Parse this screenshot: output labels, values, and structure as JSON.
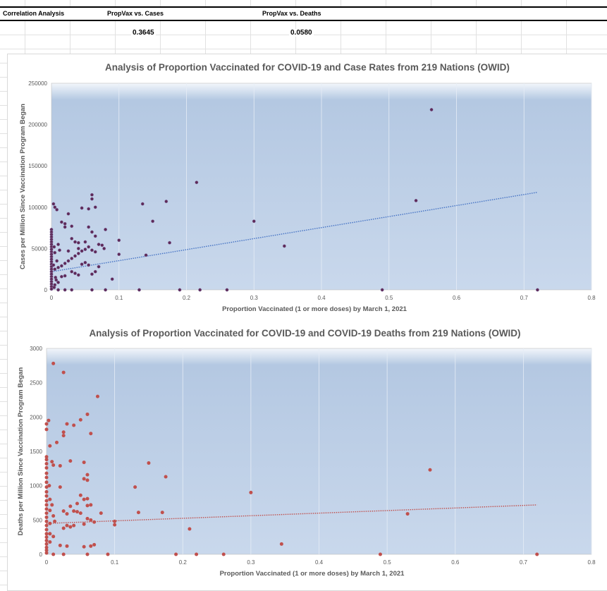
{
  "sheet": {
    "headers": [
      "Correlation Analysis",
      "PropVax vs. Cases",
      "PropVax vs. Deaths"
    ],
    "values": [
      "0.3645",
      "0.0580"
    ]
  },
  "colors": {
    "plot_top": "#dce6f2",
    "plot_bottom": "#c6d6ea",
    "cases_point": "#5e2a57",
    "cases_trend": "#4472c4",
    "deaths_point": "#c0504d",
    "deaths_trend": "#c0504d"
  },
  "chart_data": [
    {
      "type": "scatter",
      "title": "Analysis of Proportion Vaccinated for COVID-19 and Case Rates from 219 Nations (OWID)",
      "xlabel": "Proportion Vaccinated (1 or more doses) by March 1, 2021",
      "ylabel": "Cases per Million Since Vaccination Program Began",
      "xlim": [
        0,
        0.8
      ],
      "ylim": [
        0,
        250000
      ],
      "xticks": [
        "0",
        "0.1",
        "0.2",
        "0.3",
        "0.4",
        "0.5",
        "0.6",
        "0.7",
        "0.8"
      ],
      "yticks": [
        "0",
        "50000",
        "100000",
        "150000",
        "200000",
        "250000"
      ],
      "trendline": {
        "x": [
          0,
          0.72
        ],
        "y": [
          22000,
          118000
        ]
      },
      "points": [
        [
          0.563,
          218000
        ],
        [
          0.215,
          130000
        ],
        [
          0.54,
          108000
        ],
        [
          0.3,
          83000
        ],
        [
          0.345,
          53000
        ],
        [
          0.49,
          0
        ],
        [
          0.72,
          0
        ],
        [
          0.22,
          0
        ],
        [
          0.26,
          0
        ],
        [
          0.19,
          0
        ],
        [
          0.13,
          0
        ],
        [
          0.08,
          0
        ],
        [
          0.135,
          104000
        ],
        [
          0.17,
          107000
        ],
        [
          0.15,
          83000
        ],
        [
          0.175,
          57000
        ],
        [
          0.14,
          42000
        ],
        [
          0.1,
          60000
        ],
        [
          0.1,
          43000
        ],
        [
          0.09,
          13000
        ],
        [
          0.06,
          115000
        ],
        [
          0.06,
          110000
        ],
        [
          0.065,
          100000
        ],
        [
          0.055,
          98000
        ],
        [
          0.045,
          99000
        ],
        [
          0.04,
          50000
        ],
        [
          0.03,
          77000
        ],
        [
          0.025,
          92000
        ],
        [
          0.02,
          80000
        ],
        [
          0.02,
          76000
        ],
        [
          0.025,
          47000
        ],
        [
          0.03,
          62000
        ],
        [
          0.035,
          58000
        ],
        [
          0.04,
          57000
        ],
        [
          0.05,
          58000
        ],
        [
          0.055,
          76000
        ],
        [
          0.06,
          70000
        ],
        [
          0.065,
          65000
        ],
        [
          0.07,
          55000
        ],
        [
          0.075,
          54000
        ],
        [
          0.078,
          50000
        ],
        [
          0.08,
          73000
        ],
        [
          0.065,
          46000
        ],
        [
          0.06,
          48000
        ],
        [
          0.055,
          52000
        ],
        [
          0.05,
          49000
        ],
        [
          0.045,
          47000
        ],
        [
          0.04,
          44000
        ],
        [
          0.035,
          41000
        ],
        [
          0.03,
          38000
        ],
        [
          0.025,
          35000
        ],
        [
          0.02,
          32000
        ],
        [
          0.015,
          29000
        ],
        [
          0.01,
          27000
        ],
        [
          0.005,
          25000
        ],
        [
          0.03,
          22000
        ],
        [
          0.035,
          20000
        ],
        [
          0.04,
          18000
        ],
        [
          0.06,
          19000
        ],
        [
          0.065,
          22000
        ],
        [
          0.07,
          28000
        ],
        [
          0.055,
          30000
        ],
        [
          0.05,
          33000
        ],
        [
          0.045,
          31000
        ],
        [
          0.02,
          17000
        ],
        [
          0.015,
          16000
        ],
        [
          0.01,
          9000
        ],
        [
          0.005,
          6000
        ],
        [
          0.01,
          0
        ],
        [
          0.02,
          0
        ],
        [
          0.03,
          0
        ],
        [
          0.06,
          0
        ],
        [
          0.005,
          100000
        ],
        [
          0.003,
          104000
        ],
        [
          0.008,
          97000
        ],
        [
          0.015,
          82000
        ],
        [
          0,
          73000
        ],
        [
          0,
          70000
        ],
        [
          0,
          67000
        ],
        [
          0,
          64000
        ],
        [
          0,
          61000
        ],
        [
          0,
          58000
        ],
        [
          0,
          55000
        ],
        [
          0,
          52000
        ],
        [
          0,
          49000
        ],
        [
          0,
          46000
        ],
        [
          0,
          43000
        ],
        [
          0,
          40000
        ],
        [
          0,
          37000
        ],
        [
          0,
          34000
        ],
        [
          0,
          31000
        ],
        [
          0,
          28000
        ],
        [
          0,
          25000
        ],
        [
          0,
          22000
        ],
        [
          0,
          19000
        ],
        [
          0,
          16000
        ],
        [
          0,
          13000
        ],
        [
          0,
          10000
        ],
        [
          0,
          7000
        ],
        [
          0,
          4000
        ],
        [
          0,
          1000
        ],
        [
          0.005,
          45000
        ],
        [
          0.008,
          35000
        ],
        [
          0.006,
          15000
        ],
        [
          0.01,
          55000
        ],
        [
          0.004,
          52000
        ],
        [
          0.012,
          48000
        ],
        [
          0.003,
          30000
        ],
        [
          0.007,
          12000
        ],
        [
          0.004,
          3000
        ]
      ]
    },
    {
      "type": "scatter",
      "title": "Analysis of Proportion Vaccinated for COVID-19 and COVID-19 Deaths from 219 Nations (OWID)",
      "xlabel": "Proportion Vaccinated (1 or more doses) by March 1, 2021",
      "ylabel": "Deaths per Million Since Vaccination Program Began",
      "xlim": [
        0,
        0.8
      ],
      "ylim": [
        0,
        3000
      ],
      "xticks": [
        "0",
        "0.1",
        "0.2",
        "0.3",
        "0.4",
        "0.5",
        "0.6",
        "0.7",
        "0.8"
      ],
      "yticks": [
        "0",
        "500",
        "1000",
        "1500",
        "2000",
        "2500",
        "3000"
      ],
      "trendline": {
        "x": [
          0,
          0.72
        ],
        "y": [
          450,
          720
        ]
      },
      "points": [
        [
          0.01,
          2780
        ],
        [
          0.025,
          2650
        ],
        [
          0.075,
          2300
        ],
        [
          0.06,
          2040
        ],
        [
          0.05,
          1960
        ],
        [
          0.03,
          1900
        ],
        [
          0.04,
          1880
        ],
        [
          0.025,
          1780
        ],
        [
          0.025,
          1730
        ],
        [
          0.065,
          1760
        ],
        [
          0.015,
          1630
        ],
        [
          0.005,
          1580
        ],
        [
          0.035,
          1360
        ],
        [
          0.055,
          1340
        ],
        [
          0.15,
          1330
        ],
        [
          0.01,
          1300
        ],
        [
          0.02,
          1290
        ],
        [
          0.06,
          1160
        ],
        [
          0.055,
          1100
        ],
        [
          0.06,
          1080
        ],
        [
          0.175,
          1130
        ],
        [
          0.13,
          980
        ],
        [
          0.02,
          980
        ],
        [
          0.3,
          900
        ],
        [
          0.563,
          1230
        ],
        [
          0.05,
          860
        ],
        [
          0.055,
          800
        ],
        [
          0.06,
          810
        ],
        [
          0.045,
          740
        ],
        [
          0.06,
          710
        ],
        [
          0.065,
          720
        ],
        [
          0.035,
          700
        ],
        [
          0.025,
          630
        ],
        [
          0.03,
          590
        ],
        [
          0.04,
          630
        ],
        [
          0.045,
          620
        ],
        [
          0.05,
          600
        ],
        [
          0.08,
          600
        ],
        [
          0.135,
          610
        ],
        [
          0.17,
          610
        ],
        [
          0.06,
          520
        ],
        [
          0.065,
          500
        ],
        [
          0.07,
          470
        ],
        [
          0.1,
          480
        ],
        [
          0.1,
          430
        ],
        [
          0.03,
          420
        ],
        [
          0.035,
          400
        ],
        [
          0.025,
          380
        ],
        [
          0.04,
          420
        ],
        [
          0.055,
          440
        ],
        [
          0.21,
          370
        ],
        [
          0.53,
          590
        ],
        [
          0.345,
          150
        ],
        [
          0.02,
          130
        ],
        [
          0.03,
          120
        ],
        [
          0.055,
          110
        ],
        [
          0.065,
          120
        ],
        [
          0.07,
          140
        ],
        [
          0.0,
          1900
        ],
        [
          0.0,
          1820
        ],
        [
          0.0,
          1420
        ],
        [
          0.0,
          1380
        ],
        [
          0.0,
          1320
        ],
        [
          0.0,
          1260
        ],
        [
          0.0,
          1180
        ],
        [
          0.0,
          1120
        ],
        [
          0.0,
          1050
        ],
        [
          0.0,
          980
        ],
        [
          0.0,
          910
        ],
        [
          0.0,
          850
        ],
        [
          0.0,
          780
        ],
        [
          0.0,
          720
        ],
        [
          0.0,
          660
        ],
        [
          0.0,
          600
        ],
        [
          0.0,
          540
        ],
        [
          0.0,
          480
        ],
        [
          0.0,
          420
        ],
        [
          0.0,
          360
        ],
        [
          0.0,
          300
        ],
        [
          0.0,
          250
        ],
        [
          0.0,
          200
        ],
        [
          0.0,
          150
        ],
        [
          0.0,
          100
        ],
        [
          0.0,
          60
        ],
        [
          0.0,
          20
        ],
        [
          0.005,
          800
        ],
        [
          0.005,
          640
        ],
        [
          0.005,
          450
        ],
        [
          0.005,
          300
        ],
        [
          0.005,
          180
        ],
        [
          0.008,
          1350
        ],
        [
          0.008,
          720
        ],
        [
          0.01,
          560
        ],
        [
          0.012,
          480
        ],
        [
          0.01,
          260
        ],
        [
          0.01,
          0
        ],
        [
          0.025,
          0
        ],
        [
          0.06,
          0
        ],
        [
          0.09,
          0
        ],
        [
          0.19,
          0
        ],
        [
          0.22,
          0
        ],
        [
          0.26,
          0
        ],
        [
          0.49,
          0
        ],
        [
          0.72,
          0
        ],
        [
          0.003,
          1950
        ],
        [
          0.004,
          1000
        ]
      ]
    }
  ]
}
